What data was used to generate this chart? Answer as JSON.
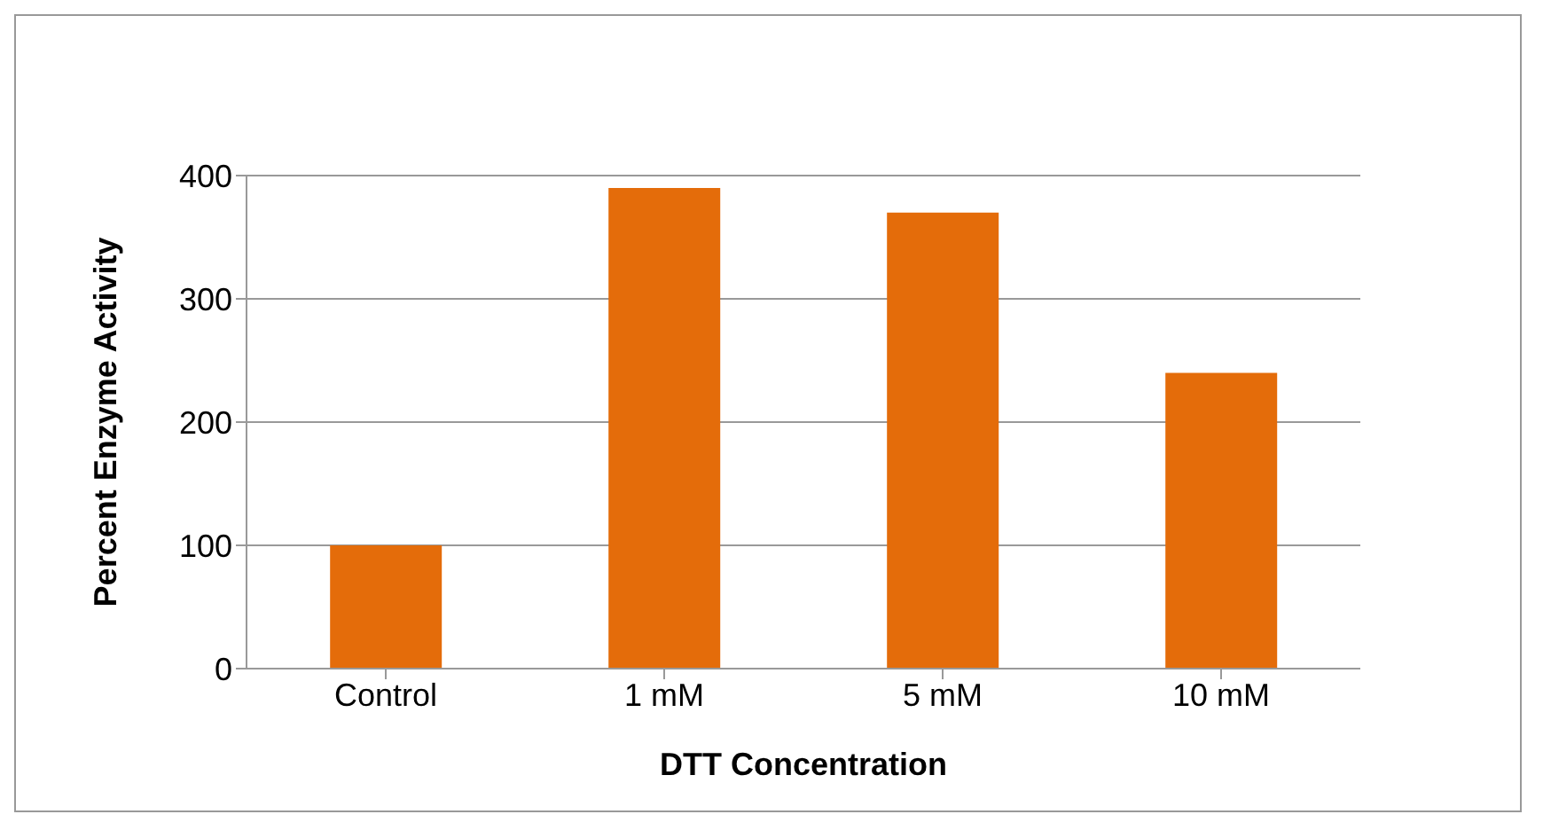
{
  "chart_data": {
    "type": "bar",
    "xlabel": "DTT Concentration",
    "ylabel": "Percent Enzyme Activity",
    "categories": [
      "Control",
      "1 mM",
      "5 mM",
      "10 mM"
    ],
    "values": [
      100,
      390,
      370,
      240
    ],
    "color": "#e46c0a",
    "ylim": [
      0,
      400
    ],
    "yticks": [
      0,
      100,
      200,
      300,
      400
    ],
    "grid": "y"
  }
}
